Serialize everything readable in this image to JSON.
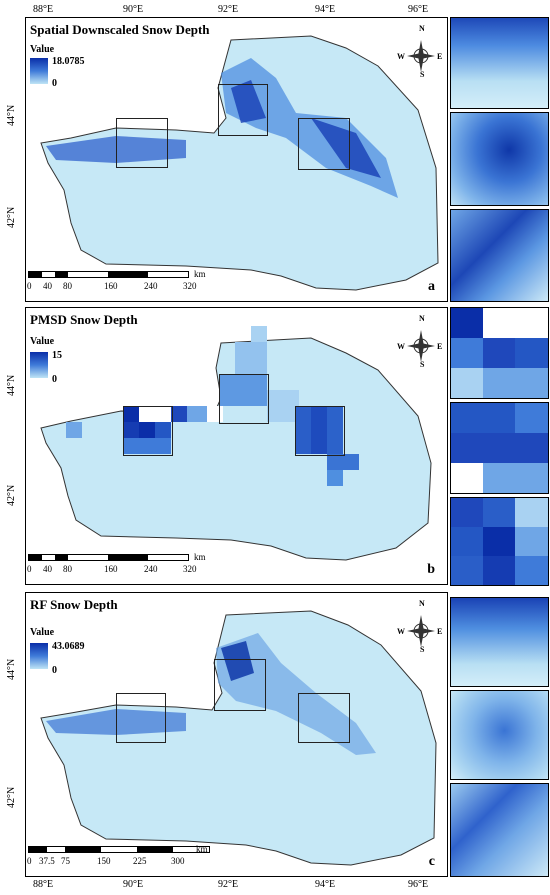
{
  "map": {
    "lon_labels": [
      "88°E",
      "90°E",
      "92°E",
      "94°E",
      "96°E"
    ],
    "lat_labels": [
      "44°N",
      "42°N"
    ],
    "compass": {
      "n": "N",
      "s": "S",
      "e": "E",
      "w": "W"
    },
    "panels": [
      {
        "title": "Spatial Downscaled Snow Depth",
        "legend_title": "Value",
        "legend_max": "18.0785",
        "legend_min": "0",
        "label": "a",
        "scale": {
          "ticks": [
            "0",
            "40",
            "80",
            "160",
            "240",
            "320"
          ],
          "unit": "km"
        }
      },
      {
        "title": "PMSD Snow Depth",
        "legend_title": "Value",
        "legend_max": "15",
        "legend_min": "0",
        "label": "b",
        "scale": {
          "ticks": [
            "0",
            "40",
            "80",
            "160",
            "240",
            "320"
          ],
          "unit": "km"
        }
      },
      {
        "title": "RF Snow Depth",
        "legend_title": "Value",
        "legend_max": "43.0689",
        "legend_min": "0",
        "label": "c",
        "scale": {
          "ticks": [
            "0",
            "37.5",
            "75",
            "150",
            "225",
            "300"
          ],
          "unit": "km"
        }
      }
    ],
    "colors": {
      "low": "#bfe4f5",
      "mid": "#3f7bd9",
      "high": "#0a2ea8"
    }
  }
}
